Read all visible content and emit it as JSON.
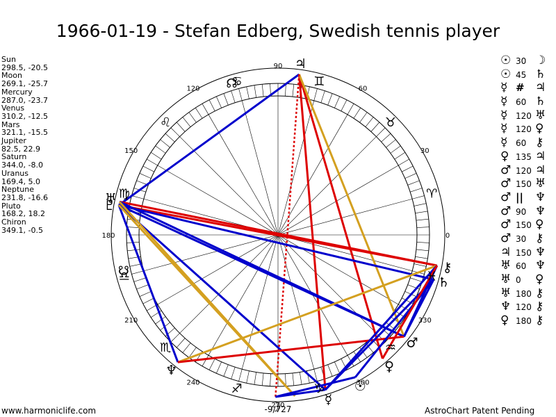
{
  "title": "1966-01-19 - Stefan Edberg, Swedish tennis player",
  "footer_left": "www.harmoniclife.com",
  "footer_right": "AstroChart Patent Pending",
  "bottom_label": "-9/727",
  "planets": [
    {
      "name": "Sun",
      "value": "298.5, -20.5",
      "glyph": "☉",
      "lon": 298.5
    },
    {
      "name": "Moon",
      "value": "269.1, -25.7",
      "glyph": "☽",
      "lon": 269.1
    },
    {
      "name": "Mercury",
      "value": "287.0, -23.7",
      "glyph": "☿",
      "lon": 287.0
    },
    {
      "name": "Venus",
      "value": "310.2, -12.5",
      "glyph": "♀",
      "lon": 310.2
    },
    {
      "name": "Mars",
      "value": "321.1, -15.5",
      "glyph": "♂",
      "lon": 321.1
    },
    {
      "name": "Jupiter",
      "value": "82.5, 22.9",
      "glyph": "♃",
      "lon": 82.5
    },
    {
      "name": "Saturn",
      "value": "344.0, -8.0",
      "glyph": "♄",
      "lon": 344.0
    },
    {
      "name": "Uranus",
      "value": "169.4, 5.0",
      "glyph": "♅",
      "lon": 169.4
    },
    {
      "name": "Neptune",
      "value": "231.8, -16.6",
      "glyph": "♆",
      "lon": 231.8
    },
    {
      "name": "Pluto",
      "value": "168.2, 18.2",
      "glyph": "♇",
      "lon": 168.2
    },
    {
      "name": "Chiron",
      "value": "349.1, -0.5",
      "glyph": "⚷",
      "lon": 349.1
    }
  ],
  "aspects": [
    {
      "p1": "☉",
      "type": "30",
      "p2": "☽"
    },
    {
      "p1": "☉",
      "type": "45",
      "p2": "♄"
    },
    {
      "p1": "☿",
      "type": "#",
      "p2": "♃"
    },
    {
      "p1": "☿",
      "type": "60",
      "p2": "♄"
    },
    {
      "p1": "☿",
      "type": "120",
      "p2": "♅"
    },
    {
      "p1": "☿",
      "type": "120",
      "p2": "♀"
    },
    {
      "p1": "☿",
      "type": "60",
      "p2": "⚷"
    },
    {
      "p1": "♀",
      "type": "135",
      "p2": "♃"
    },
    {
      "p1": "♂",
      "type": "120",
      "p2": "♃"
    },
    {
      "p1": "♂",
      "type": "150",
      "p2": "♅"
    },
    {
      "p1": "♂",
      "type": "||",
      "p2": "♆"
    },
    {
      "p1": "♂",
      "type": "90",
      "p2": "♆"
    },
    {
      "p1": "♂",
      "type": "150",
      "p2": "♀"
    },
    {
      "p1": "♂",
      "type": "30",
      "p2": "⚷"
    },
    {
      "p1": "♃",
      "type": "150",
      "p2": "♆"
    },
    {
      "p1": "♅",
      "type": "60",
      "p2": "♆"
    },
    {
      "p1": "♅",
      "type": "0",
      "p2": "♀"
    },
    {
      "p1": "♅",
      "type": "180",
      "p2": "⚷"
    },
    {
      "p1": "♆",
      "type": "120",
      "p2": "⚷"
    },
    {
      "p1": "♀",
      "type": "180",
      "p2": "⚷"
    }
  ],
  "degree_labels": [
    "0",
    "30",
    "60",
    "90",
    "120",
    "150",
    "180",
    "210",
    "240",
    "270",
    "300",
    "330"
  ],
  "signs": [
    {
      "glyph": "♈",
      "lon": 15
    },
    {
      "glyph": "♉",
      "lon": 45
    },
    {
      "glyph": "♊",
      "lon": 75
    },
    {
      "glyph": "♋",
      "lon": 105
    },
    {
      "glyph": "♌",
      "lon": 135
    },
    {
      "glyph": "♍",
      "lon": 165
    },
    {
      "glyph": "♎",
      "lon": 195
    },
    {
      "glyph": "♏",
      "lon": 225
    },
    {
      "glyph": "♐",
      "lon": 255
    },
    {
      "glyph": "♑",
      "lon": 285
    },
    {
      "glyph": "♒",
      "lon": 315
    },
    {
      "glyph": "♓",
      "lon": 345
    }
  ],
  "nodes": [
    {
      "glyph": "☊",
      "lon": 107
    },
    {
      "glyph": "☋",
      "lon": 193
    }
  ],
  "aspect_lines": [
    {
      "a": 82.5,
      "b": 169.4,
      "color": "#0000cc"
    },
    {
      "a": 82.5,
      "b": 287.0,
      "color": "#dd0000"
    },
    {
      "a": 82.5,
      "b": 310.2,
      "color": "#dd0000"
    },
    {
      "a": 82.5,
      "b": 321.1,
      "color": "#d4a020"
    },
    {
      "a": 82.5,
      "b": 269.1,
      "color": "#dd0000",
      "dashed": true
    },
    {
      "a": 169.4,
      "b": 349.1,
      "color": "#dd0000"
    },
    {
      "a": 168.2,
      "b": 349.1,
      "color": "#dd0000"
    },
    {
      "a": 169.4,
      "b": 231.8,
      "color": "#0000cc"
    },
    {
      "a": 169.4,
      "b": 287.0,
      "color": "#0000cc"
    },
    {
      "a": 169.4,
      "b": 321.1,
      "color": "#0000cc"
    },
    {
      "a": 168.2,
      "b": 321.1,
      "color": "#0000cc"
    },
    {
      "a": 169.4,
      "b": 344.0,
      "color": "#0000cc"
    },
    {
      "a": 169.4,
      "b": 276.0,
      "color": "#d4a020"
    },
    {
      "a": 168.2,
      "b": 276.0,
      "color": "#d4a020"
    },
    {
      "a": 231.8,
      "b": 349.1,
      "color": "#d4a020"
    },
    {
      "a": 231.8,
      "b": 321.1,
      "color": "#dd0000"
    },
    {
      "a": 287.0,
      "b": 349.1,
      "color": "#0000cc"
    },
    {
      "a": 287.0,
      "b": 344.0,
      "color": "#0000cc"
    },
    {
      "a": 269.1,
      "b": 298.5,
      "color": "#0000cc"
    },
    {
      "a": 298.5,
      "b": 344.0,
      "color": "#0000cc"
    },
    {
      "a": 321.1,
      "b": 349.1,
      "color": "#0000cc"
    },
    {
      "a": 321.1,
      "b": 344.0,
      "color": "#0000cc"
    },
    {
      "a": 310.2,
      "b": 349.1,
      "color": "#dd0000"
    },
    {
      "a": 269.1,
      "b": 287.0,
      "color": "#0000cc"
    }
  ]
}
